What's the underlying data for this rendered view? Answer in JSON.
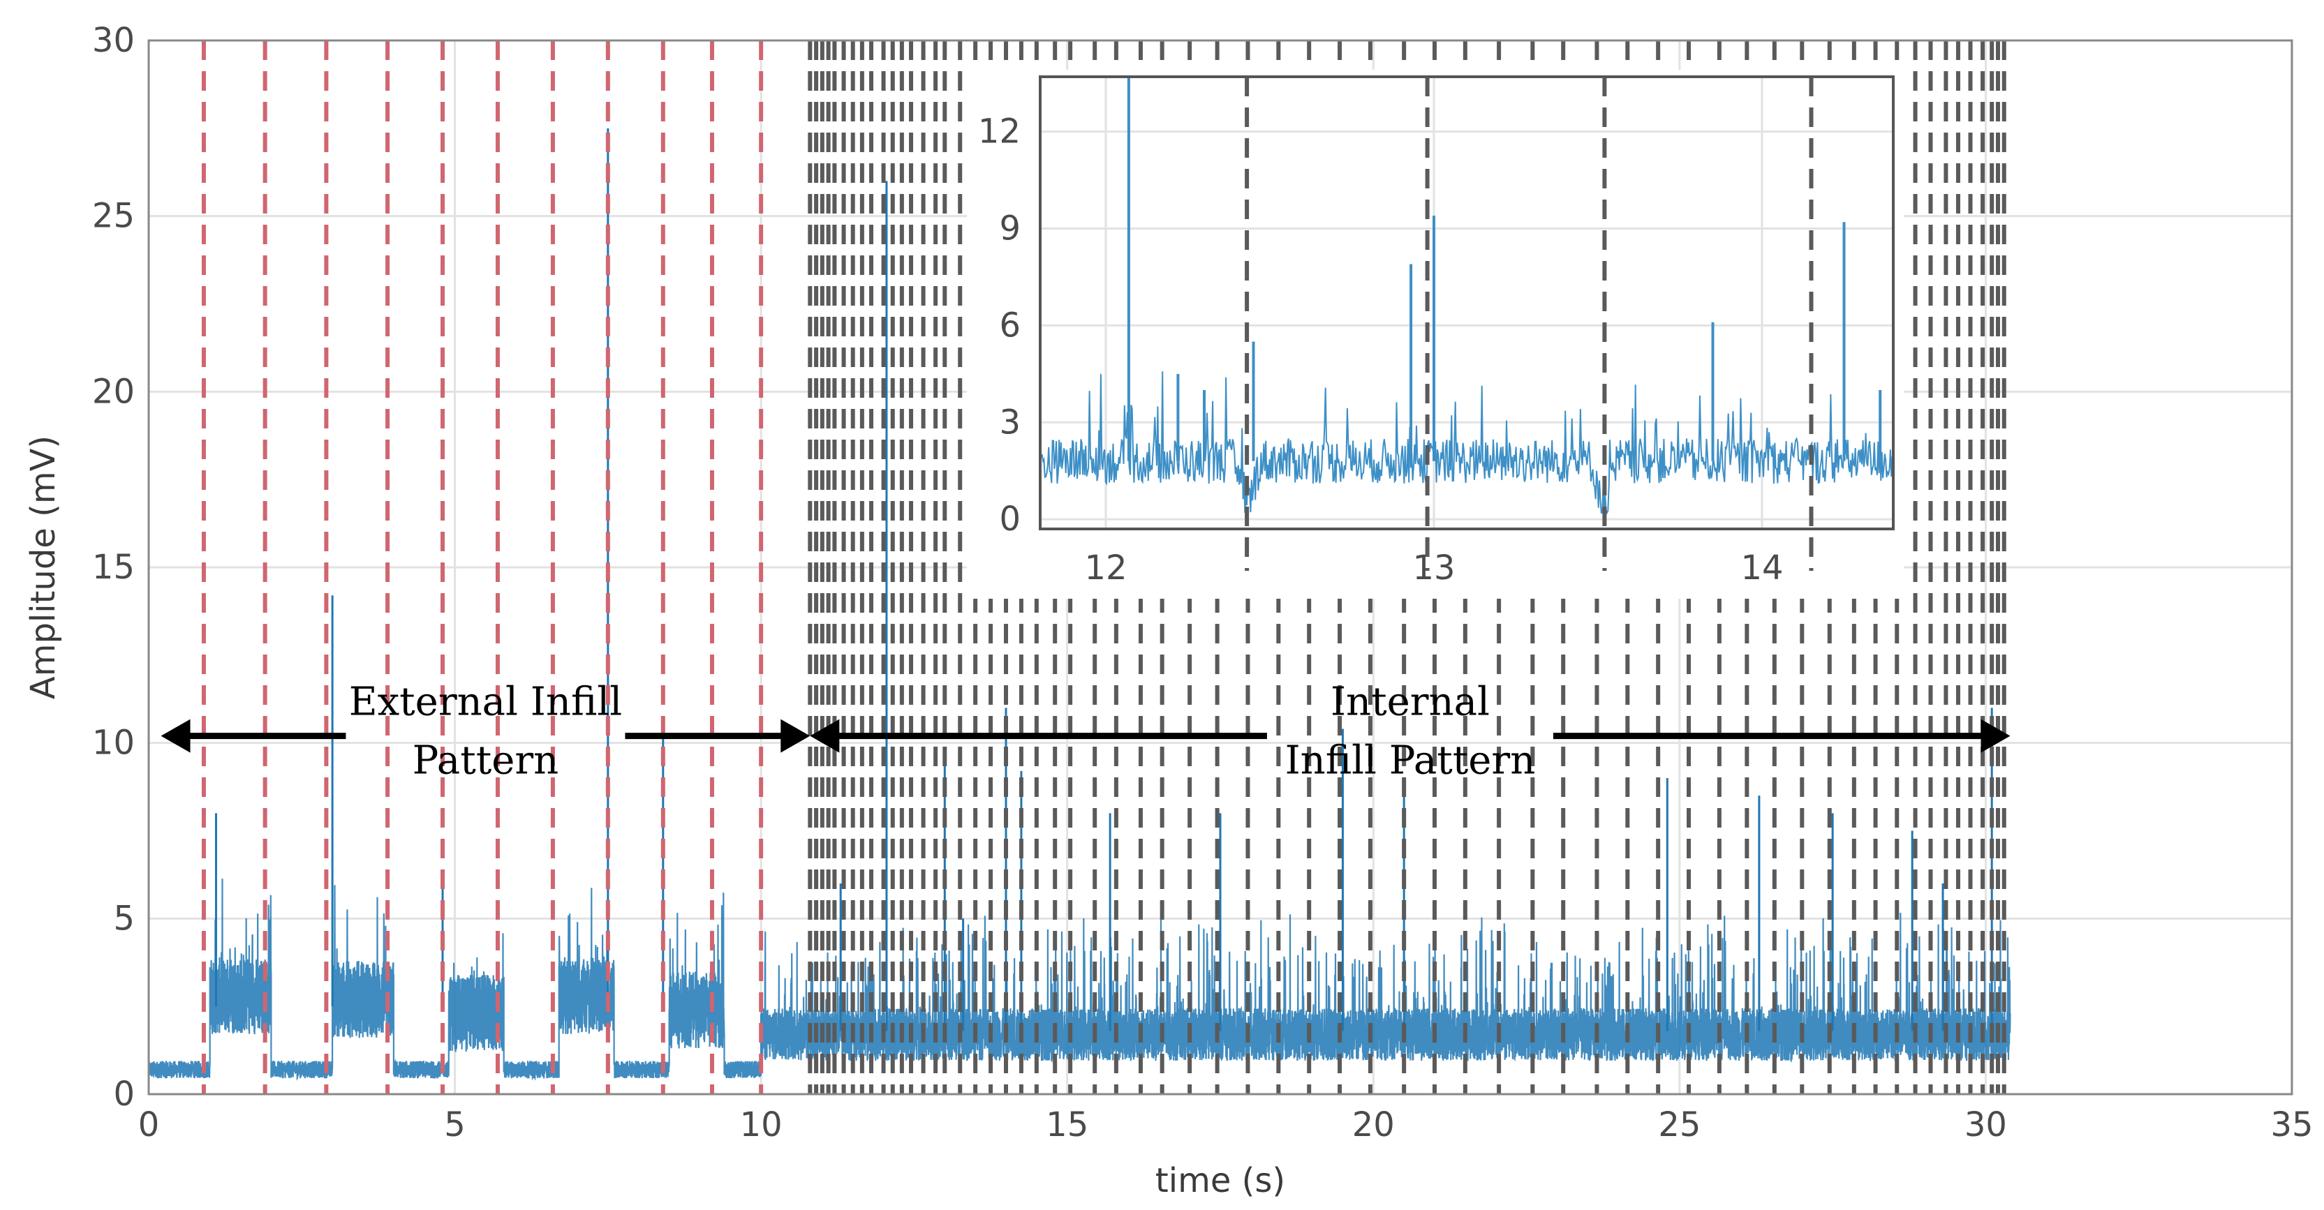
{
  "chart_data": [
    {
      "type": "line",
      "name": "main",
      "xlabel": "time (s)",
      "ylabel": "Amplitude (mV)",
      "xlim": [
        0,
        35
      ],
      "ylim": [
        0,
        30
      ],
      "xticks": [
        0,
        5,
        10,
        15,
        20,
        25,
        30,
        35
      ],
      "yticks": [
        0,
        5,
        10,
        15,
        20,
        25,
        30
      ],
      "grid": true,
      "series_color": "#1f77b4",
      "external_boundaries": [
        0.9,
        1.9,
        2.9,
        3.9,
        4.8,
        5.7,
        6.6,
        7.5,
        8.4,
        9.2,
        10.0
      ],
      "internal_boundaries": [
        10.8,
        10.9,
        11.0,
        11.1,
        11.2,
        11.35,
        11.5,
        11.65,
        11.8,
        12.0,
        12.15,
        12.3,
        12.45,
        12.65,
        12.85,
        13.0,
        13.25,
        13.5,
        13.75,
        14.0,
        14.25,
        14.5,
        14.8,
        15.05,
        15.45,
        15.8,
        16.2,
        16.55,
        17.0,
        17.45,
        17.95,
        18.45,
        18.95,
        19.45,
        19.95,
        20.5,
        21.0,
        21.5,
        22.05,
        22.6,
        23.1,
        23.65,
        24.15,
        24.65,
        25.15,
        25.65,
        26.1,
        26.55,
        27.0,
        27.45,
        27.85,
        28.2,
        28.55,
        28.85,
        29.1,
        29.35,
        29.55,
        29.75,
        29.95,
        30.1,
        30.2,
        30.3
      ],
      "segments": [
        {
          "start": 0.0,
          "end": 1.0,
          "level": 0.7
        },
        {
          "start": 1.0,
          "end": 2.0,
          "level": 2.8
        },
        {
          "start": 2.0,
          "end": 3.0,
          "level": 0.7
        },
        {
          "start": 3.0,
          "end": 4.0,
          "level": 2.7
        },
        {
          "start": 4.0,
          "end": 4.9,
          "level": 0.7
        },
        {
          "start": 4.9,
          "end": 5.8,
          "level": 2.3
        },
        {
          "start": 5.8,
          "end": 6.7,
          "level": 0.7
        },
        {
          "start": 6.7,
          "end": 7.6,
          "level": 2.8
        },
        {
          "start": 7.6,
          "end": 8.5,
          "level": 0.7
        },
        {
          "start": 8.5,
          "end": 9.4,
          "level": 2.4
        },
        {
          "start": 9.4,
          "end": 10.0,
          "level": 0.7
        },
        {
          "start": 10.0,
          "end": 30.4,
          "level": 1.7
        }
      ],
      "spikes": [
        {
          "x": 3.0,
          "y": 14.2
        },
        {
          "x": 7.5,
          "y": 27.5
        },
        {
          "x": 8.4,
          "y": 10.5
        },
        {
          "x": 1.1,
          "y": 8.0
        },
        {
          "x": 4.8,
          "y": 6.0
        },
        {
          "x": 12.05,
          "y": 26.0
        },
        {
          "x": 13.0,
          "y": 9.4
        },
        {
          "x": 14.25,
          "y": 9.2
        },
        {
          "x": 14.0,
          "y": 11.0
        },
        {
          "x": 15.7,
          "y": 8.0
        },
        {
          "x": 17.5,
          "y": 8.0
        },
        {
          "x": 19.5,
          "y": 10.4
        },
        {
          "x": 20.5,
          "y": 9.0
        },
        {
          "x": 24.8,
          "y": 9.0
        },
        {
          "x": 26.3,
          "y": 8.5
        },
        {
          "x": 27.5,
          "y": 8.0
        },
        {
          "x": 28.8,
          "y": 7.5
        },
        {
          "x": 29.3,
          "y": 6.0
        },
        {
          "x": 30.1,
          "y": 11.0
        },
        {
          "x": 11.3,
          "y": 6.0
        },
        {
          "x": 13.3,
          "y": 5.0
        }
      ],
      "annotations": [
        {
          "lines": [
            "External Infill",
            "Pattern"
          ],
          "from_x": 0.2,
          "to_x": 10.8,
          "y": 10.2
        },
        {
          "lines": [
            "Internal",
            "Infill Pattern"
          ],
          "from_x": 10.8,
          "to_x": 30.4,
          "y": 10.2
        }
      ]
    },
    {
      "type": "line",
      "name": "inset",
      "xlim": [
        11.8,
        14.4
      ],
      "ylim": [
        -0.3,
        13.7
      ],
      "xticks": [
        12,
        13,
        14
      ],
      "yticks": [
        0,
        3,
        6,
        9,
        12
      ],
      "grid": true,
      "boundaries": [
        12.43,
        12.98,
        13.52,
        14.15
      ],
      "baseline": 1.8,
      "dips": [
        12.43,
        13.52
      ],
      "spikes": [
        {
          "x": 12.07,
          "y": 13.7
        },
        {
          "x": 13.0,
          "y": 9.4
        },
        {
          "x": 14.25,
          "y": 9.2
        },
        {
          "x": 12.45,
          "y": 5.5
        },
        {
          "x": 12.93,
          "y": 7.9
        },
        {
          "x": 13.85,
          "y": 6.1
        },
        {
          "x": 12.22,
          "y": 4.5
        },
        {
          "x": 12.3,
          "y": 4.0
        },
        {
          "x": 14.36,
          "y": 4.0
        }
      ]
    }
  ]
}
